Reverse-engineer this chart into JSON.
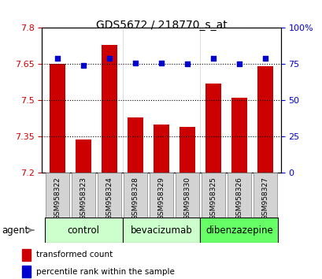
{
  "title": "GDS5672 / 218770_s_at",
  "samples": [
    "GSM958322",
    "GSM958323",
    "GSM958324",
    "GSM958328",
    "GSM958329",
    "GSM958330",
    "GSM958325",
    "GSM958326",
    "GSM958327"
  ],
  "bar_values": [
    7.65,
    7.34,
    7.73,
    7.43,
    7.4,
    7.39,
    7.57,
    7.51,
    7.64
  ],
  "percentile_values": [
    79,
    74,
    79,
    76,
    76,
    75,
    79,
    75,
    79
  ],
  "bar_color": "#cc0000",
  "dot_color": "#0000cc",
  "ylim_left": [
    7.2,
    7.8
  ],
  "ylim_right": [
    0,
    100
  ],
  "yticks_left": [
    7.2,
    7.35,
    7.5,
    7.65,
    7.8
  ],
  "ytick_labels_left": [
    "7.2",
    "7.35",
    "7.5",
    "7.65",
    "7.8"
  ],
  "yticks_right": [
    0,
    25,
    50,
    75,
    100
  ],
  "ytick_labels_right": [
    "0",
    "25",
    "50",
    "75",
    "100%"
  ],
  "groups": [
    {
      "label": "control",
      "indices": [
        0,
        1,
        2
      ],
      "color": "#ccffcc"
    },
    {
      "label": "bevacizumab",
      "indices": [
        3,
        4,
        5
      ],
      "color": "#ccffcc"
    },
    {
      "label": "dibenzazepine",
      "indices": [
        6,
        7,
        8
      ],
      "color": "#66ff66"
    }
  ],
  "agent_label": "agent",
  "legend_bar_label": "transformed count",
  "legend_dot_label": "percentile rank within the sample",
  "bar_width": 0.6,
  "background_color": "#ffffff",
  "plot_bg_color": "#ffffff",
  "grid_color": "#000000",
  "grid_style": "dotted"
}
